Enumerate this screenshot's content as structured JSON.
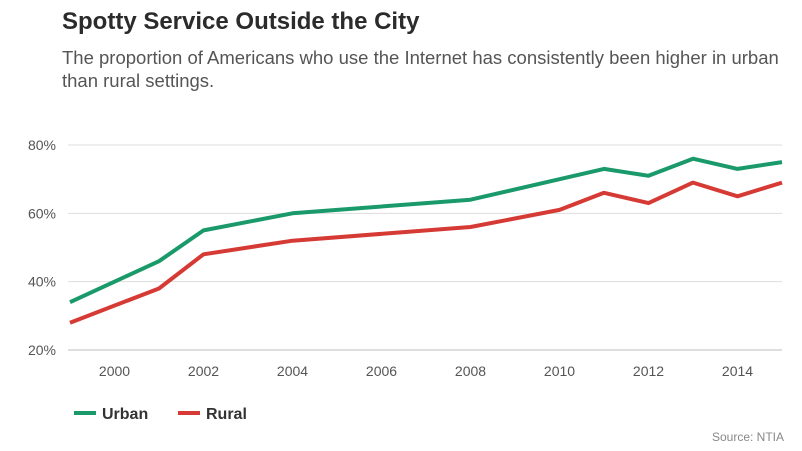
{
  "chart_data": {
    "type": "line",
    "title": "Spotty Service Outside the City",
    "subtitle": "The proportion of Americans who use the Internet has consistently been higher in urban than rural settings.",
    "source": "Source: NTIA",
    "x": [
      1999,
      2001,
      2002,
      2004,
      2008,
      2010,
      2011,
      2012,
      2013,
      2014,
      2015
    ],
    "x_ticks": [
      2000,
      2002,
      2004,
      2006,
      2008,
      2010,
      2012,
      2014
    ],
    "y_ticks": [
      20,
      40,
      60,
      80
    ],
    "y_tick_labels": [
      "20%",
      "40%",
      "60%",
      "80%"
    ],
    "xlim": [
      1999,
      2015
    ],
    "ylim": [
      20,
      80
    ],
    "grid": "horizontal",
    "legend": "bottom-left",
    "series": [
      {
        "name": "Urban",
        "color": "#1a9a6b",
        "values": [
          34,
          46,
          55,
          60,
          64,
          70,
          73,
          71,
          76,
          73,
          75
        ]
      },
      {
        "name": "Rural",
        "color": "#d63a35",
        "values": [
          28,
          38,
          48,
          52,
          56,
          61,
          66,
          63,
          69,
          65,
          69
        ]
      }
    ]
  }
}
